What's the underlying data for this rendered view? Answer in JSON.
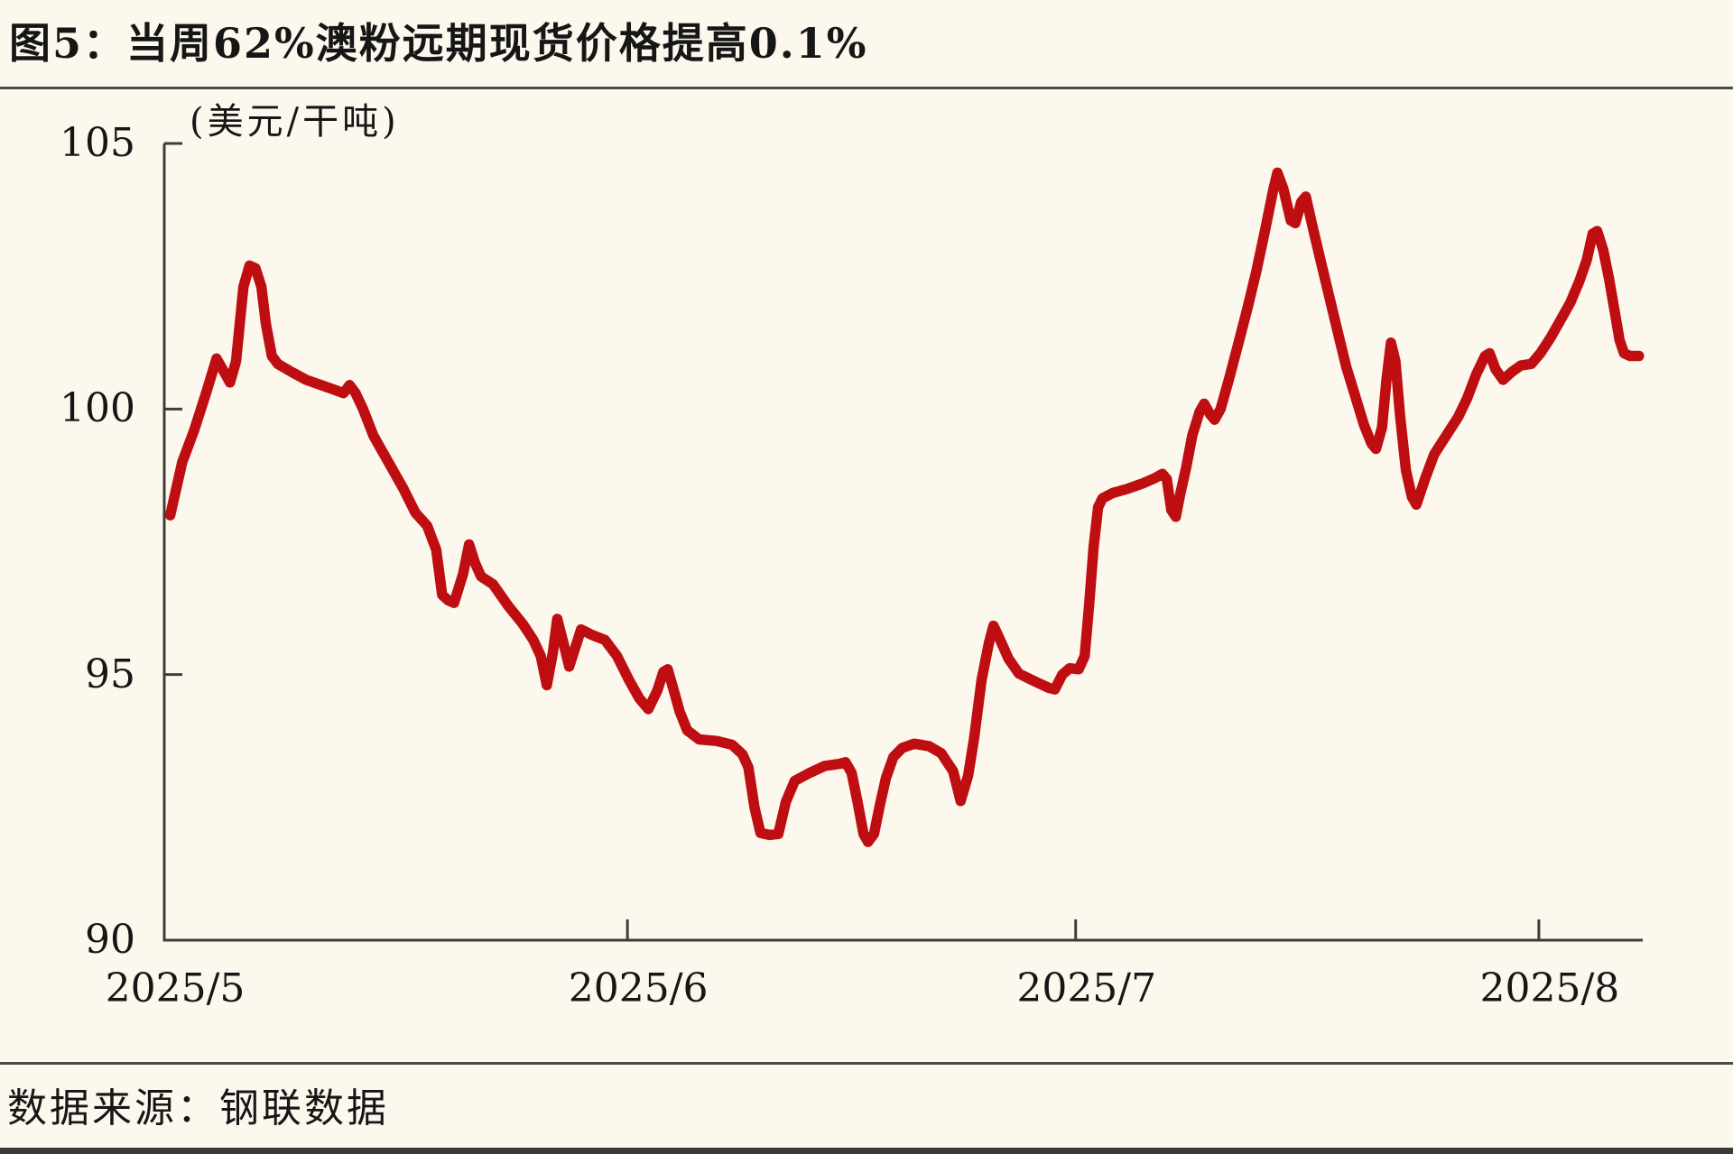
{
  "title": "图5：当周62%澳粉远期现货价格提高0.1%",
  "source": "数据来源：钢联数据",
  "chart_data": {
    "type": "line",
    "title": "当周62%澳粉远期现货价格提高0.1%",
    "series_name": "62%澳粉远期现货价格",
    "unit_label": "(美元/干吨)",
    "line_color": "#bf0e12",
    "axis_color": "#3d3d3d",
    "ylim": [
      90,
      105
    ],
    "yticks": [
      90,
      95,
      100,
      105
    ],
    "x_axis_note": "x encoded as days since 2025-05-01",
    "xticks": [
      {
        "day": 0,
        "label": "2025/5"
      },
      {
        "day": 31,
        "label": "2025/6"
      },
      {
        "day": 61,
        "label": "2025/7"
      },
      {
        "day": 92,
        "label": "2025/8"
      }
    ],
    "x_domain_days": [
      0,
      99
    ],
    "grid": false,
    "legend": "none",
    "points": [
      [
        0.4,
        98.0
      ],
      [
        1.2,
        99.0
      ],
      [
        2.0,
        99.6
      ],
      [
        2.8,
        100.3
      ],
      [
        3.5,
        100.95
      ],
      [
        4.0,
        100.7
      ],
      [
        4.4,
        100.5
      ],
      [
        4.8,
        100.9
      ],
      [
        5.3,
        102.3
      ],
      [
        5.7,
        102.7
      ],
      [
        6.1,
        102.65
      ],
      [
        6.5,
        102.3
      ],
      [
        6.8,
        101.6
      ],
      [
        7.2,
        101.0
      ],
      [
        7.6,
        100.85
      ],
      [
        8.5,
        100.7
      ],
      [
        9.5,
        100.55
      ],
      [
        10.5,
        100.45
      ],
      [
        11.5,
        100.35
      ],
      [
        12.0,
        100.3
      ],
      [
        12.4,
        100.45
      ],
      [
        12.8,
        100.3
      ],
      [
        13.3,
        100.0
      ],
      [
        14.0,
        99.5
      ],
      [
        15.0,
        99.0
      ],
      [
        16.0,
        98.5
      ],
      [
        16.8,
        98.05
      ],
      [
        17.6,
        97.8
      ],
      [
        18.2,
        97.35
      ],
      [
        18.6,
        96.5
      ],
      [
        19.0,
        96.4
      ],
      [
        19.4,
        96.35
      ],
      [
        20.0,
        96.9
      ],
      [
        20.4,
        97.45
      ],
      [
        20.8,
        97.1
      ],
      [
        21.2,
        96.85
      ],
      [
        22.0,
        96.7
      ],
      [
        23.0,
        96.3
      ],
      [
        24.0,
        95.95
      ],
      [
        24.7,
        95.65
      ],
      [
        25.2,
        95.35
      ],
      [
        25.6,
        94.8
      ],
      [
        26.0,
        95.4
      ],
      [
        26.3,
        96.05
      ],
      [
        26.8,
        95.5
      ],
      [
        27.1,
        95.15
      ],
      [
        27.5,
        95.5
      ],
      [
        27.9,
        95.85
      ],
      [
        28.6,
        95.75
      ],
      [
        29.5,
        95.65
      ],
      [
        30.3,
        95.35
      ],
      [
        31.1,
        94.9
      ],
      [
        31.8,
        94.55
      ],
      [
        32.4,
        94.35
      ],
      [
        33.0,
        94.7
      ],
      [
        33.4,
        95.05
      ],
      [
        33.7,
        95.1
      ],
      [
        34.1,
        94.7
      ],
      [
        34.5,
        94.3
      ],
      [
        35.0,
        93.95
      ],
      [
        35.8,
        93.78
      ],
      [
        37.0,
        93.75
      ],
      [
        38.0,
        93.68
      ],
      [
        38.7,
        93.5
      ],
      [
        39.1,
        93.25
      ],
      [
        39.5,
        92.5
      ],
      [
        39.9,
        92.02
      ],
      [
        40.5,
        91.98
      ],
      [
        41.1,
        92.0
      ],
      [
        41.6,
        92.6
      ],
      [
        42.2,
        93.0
      ],
      [
        43.2,
        93.15
      ],
      [
        44.2,
        93.28
      ],
      [
        45.2,
        93.32
      ],
      [
        45.6,
        93.35
      ],
      [
        46.0,
        93.15
      ],
      [
        46.4,
        92.6
      ],
      [
        46.8,
        92.0
      ],
      [
        47.1,
        91.85
      ],
      [
        47.5,
        92.0
      ],
      [
        47.9,
        92.55
      ],
      [
        48.3,
        93.05
      ],
      [
        48.8,
        93.45
      ],
      [
        49.4,
        93.62
      ],
      [
        50.2,
        93.7
      ],
      [
        51.2,
        93.65
      ],
      [
        52.0,
        93.52
      ],
      [
        52.8,
        93.18
      ],
      [
        53.3,
        92.62
      ],
      [
        53.8,
        93.1
      ],
      [
        54.2,
        93.8
      ],
      [
        54.7,
        94.9
      ],
      [
        55.2,
        95.6
      ],
      [
        55.5,
        95.92
      ],
      [
        55.9,
        95.68
      ],
      [
        56.5,
        95.3
      ],
      [
        57.2,
        95.02
      ],
      [
        58.2,
        94.88
      ],
      [
        59.2,
        94.75
      ],
      [
        59.6,
        94.72
      ],
      [
        60.1,
        95.0
      ],
      [
        60.6,
        95.12
      ],
      [
        61.2,
        95.1
      ],
      [
        61.6,
        95.35
      ],
      [
        61.9,
        96.3
      ],
      [
        62.2,
        97.4
      ],
      [
        62.5,
        98.15
      ],
      [
        62.8,
        98.32
      ],
      [
        63.5,
        98.42
      ],
      [
        64.5,
        98.5
      ],
      [
        65.5,
        98.6
      ],
      [
        66.3,
        98.7
      ],
      [
        66.8,
        98.78
      ],
      [
        67.1,
        98.68
      ],
      [
        67.4,
        98.1
      ],
      [
        67.7,
        97.97
      ],
      [
        68.0,
        98.4
      ],
      [
        68.4,
        98.9
      ],
      [
        68.8,
        99.5
      ],
      [
        69.3,
        99.95
      ],
      [
        69.6,
        100.1
      ],
      [
        70.0,
        99.9
      ],
      [
        70.3,
        99.8
      ],
      [
        70.7,
        100.0
      ],
      [
        71.3,
        100.6
      ],
      [
        71.9,
        101.25
      ],
      [
        72.5,
        101.9
      ],
      [
        73.1,
        102.6
      ],
      [
        73.7,
        103.4
      ],
      [
        74.2,
        104.1
      ],
      [
        74.5,
        104.45
      ],
      [
        74.9,
        104.15
      ],
      [
        75.4,
        103.55
      ],
      [
        75.7,
        103.5
      ],
      [
        76.1,
        103.9
      ],
      [
        76.4,
        104.0
      ],
      [
        76.8,
        103.5
      ],
      [
        77.3,
        102.9
      ],
      [
        77.9,
        102.2
      ],
      [
        78.5,
        101.5
      ],
      [
        79.1,
        100.8
      ],
      [
        79.7,
        100.25
      ],
      [
        80.3,
        99.7
      ],
      [
        80.8,
        99.35
      ],
      [
        81.1,
        99.25
      ],
      [
        81.5,
        99.65
      ],
      [
        81.8,
        100.55
      ],
      [
        82.1,
        101.25
      ],
      [
        82.4,
        100.9
      ],
      [
        82.7,
        99.9
      ],
      [
        83.1,
        98.85
      ],
      [
        83.5,
        98.35
      ],
      [
        83.8,
        98.2
      ],
      [
        84.4,
        98.7
      ],
      [
        85.0,
        99.15
      ],
      [
        85.8,
        99.5
      ],
      [
        86.6,
        99.85
      ],
      [
        87.2,
        100.2
      ],
      [
        87.8,
        100.65
      ],
      [
        88.4,
        101.0
      ],
      [
        88.7,
        101.05
      ],
      [
        89.1,
        100.75
      ],
      [
        89.6,
        100.55
      ],
      [
        90.2,
        100.7
      ],
      [
        90.8,
        100.82
      ],
      [
        91.5,
        100.85
      ],
      [
        92.1,
        101.05
      ],
      [
        92.8,
        101.35
      ],
      [
        93.5,
        101.7
      ],
      [
        94.1,
        102.0
      ],
      [
        94.7,
        102.4
      ],
      [
        95.2,
        102.8
      ],
      [
        95.6,
        103.3
      ],
      [
        95.9,
        103.35
      ],
      [
        96.3,
        103.0
      ],
      [
        96.7,
        102.45
      ],
      [
        97.1,
        101.8
      ],
      [
        97.4,
        101.3
      ],
      [
        97.7,
        101.05
      ],
      [
        98.1,
        101.0
      ],
      [
        98.7,
        101.0
      ]
    ]
  }
}
